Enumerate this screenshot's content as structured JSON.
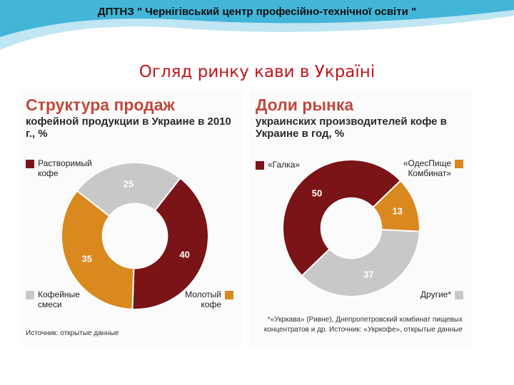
{
  "header": {
    "title": "ДПТНЗ \" Чернігівський центр професійно-технічної освіти \""
  },
  "slide": {
    "title": "Огляд ринку кави в Україні"
  },
  "colors": {
    "band": "#43b5d9",
    "band_light": "#bfe6f2",
    "title_red": "#c0161b",
    "panel_title": "#bf4a3c"
  },
  "left_panel": {
    "title": "Структура продаж",
    "subtitle": "кофейной продукции в Украине в 2010 г., %",
    "source": "Источник: открытые данные",
    "legend": [
      {
        "label": "Растворимый кофе",
        "color": "#7a1416"
      },
      {
        "label": "Кофейные смеси",
        "color": "#c8c8c8"
      },
      {
        "label": "Молотый кофе",
        "color": "#d9891d"
      }
    ]
  },
  "right_panel": {
    "title": "Доли рынка",
    "subtitle": "украинских производителей кофе в Украине в год, %",
    "footnote": "*«Укркава» (Ривне), Днепропетровский комбинат пищевых концентратов и др. Источник: «Укркофе», открытые данные",
    "legend": [
      {
        "label": "«Галка»",
        "color": "#7a1416"
      },
      {
        "label": "«ОдесПище Комбинат»",
        "color": "#d9891d"
      },
      {
        "label": "Другие*",
        "color": "#c8c8c8"
      }
    ]
  },
  "chart_data": [
    {
      "type": "pie",
      "title": "Структура продаж",
      "subtitle": "кофейной продукции в Украине в 2010 г., %",
      "categories": [
        "Растворимый кофе",
        "Молотый кофе",
        "Кофейные смеси"
      ],
      "values": [
        40,
        35,
        25
      ],
      "colors": [
        "#7a1416",
        "#d9891d",
        "#c8c8c8"
      ],
      "donut": true
    },
    {
      "type": "pie",
      "title": "Доли рынка",
      "subtitle": "украинских производителей кофе в Украине в год, %",
      "categories": [
        "«ОдесПище Комбинат»",
        "Другие*",
        "«Галка»"
      ],
      "values": [
        13,
        37,
        50
      ],
      "colors": [
        "#d9891d",
        "#c8c8c8",
        "#7a1416"
      ],
      "donut": true
    }
  ]
}
